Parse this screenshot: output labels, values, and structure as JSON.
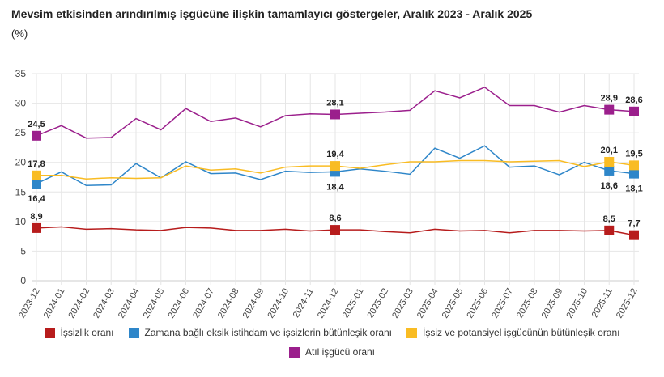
{
  "title": "Mevsim etkisinden arındırılmış işgücüne ilişkin tamamlayıcı göstergeler, Aralık 2023 - Aralık 2025",
  "unit": "(%)",
  "chart_data": {
    "type": "line",
    "title": "Mevsim etkisinden arındırılmış işgücüne ilişkin tamamlayıcı göstergeler, Aralık 2023 - Aralık 2025",
    "ylabel": "(%)",
    "ylim": [
      0,
      35
    ],
    "yticks": [
      0,
      5,
      10,
      15,
      20,
      25,
      30,
      35
    ],
    "grid": true,
    "legend_position": "bottom",
    "categories": [
      "2023-12",
      "2024-01",
      "2024-02",
      "2024-03",
      "2024-04",
      "2024-05",
      "2024-06",
      "2024-07",
      "2024-08",
      "2024-09",
      "2024-10",
      "2024-11",
      "2024-12",
      "2025-01",
      "2025-02",
      "2025-03",
      "2025-04",
      "2025-05",
      "2025-06",
      "2025-07",
      "2025-08",
      "2025-09",
      "2025-10",
      "2025-11",
      "2025-12"
    ],
    "labeled_indices": [
      0,
      12,
      23,
      24
    ],
    "series": [
      {
        "name": "İşsizlik oranı",
        "color": "#b71c1c",
        "values": [
          8.9,
          9.1,
          8.7,
          8.8,
          8.6,
          8.5,
          9.0,
          8.9,
          8.5,
          8.5,
          8.7,
          8.4,
          8.6,
          8.6,
          8.3,
          8.1,
          8.7,
          8.4,
          8.5,
          8.1,
          8.5,
          8.5,
          8.4,
          8.5,
          7.7
        ],
        "labels": [
          "8,9",
          "8,6",
          "8,5",
          "7,7"
        ]
      },
      {
        "name": "Zamana bağlı eksik istihdam ve işsizlerin bütünleşik oranı",
        "color": "#2e86c9",
        "values": [
          16.4,
          18.4,
          16.1,
          16.2,
          19.8,
          17.4,
          20.1,
          18.1,
          18.2,
          17.1,
          18.5,
          18.3,
          18.4,
          18.9,
          18.5,
          18.0,
          22.4,
          20.7,
          22.8,
          19.2,
          19.4,
          17.9,
          20.0,
          18.6,
          18.1
        ],
        "labels": [
          "16,4",
          "18,4",
          "18,6",
          "18,1"
        ]
      },
      {
        "name": "İşsiz ve potansiyel işgücünün bütünleşik oranı",
        "color": "#f9bc23",
        "values": [
          17.8,
          17.8,
          17.2,
          17.4,
          17.3,
          17.4,
          19.4,
          18.7,
          18.9,
          18.2,
          19.2,
          19.4,
          19.4,
          19.0,
          19.6,
          20.1,
          20.1,
          20.3,
          20.3,
          20.1,
          20.2,
          20.3,
          19.3,
          20.1,
          19.5
        ],
        "labels": [
          "17,8",
          "19,4",
          "20,1",
          "19,5"
        ]
      },
      {
        "name": "Atıl işgücü oranı",
        "color": "#9b1f8c",
        "values": [
          24.5,
          26.2,
          24.1,
          24.2,
          27.4,
          25.5,
          29.1,
          26.9,
          27.5,
          26.0,
          27.9,
          28.2,
          28.1,
          28.3,
          28.5,
          28.8,
          32.1,
          30.9,
          32.7,
          29.6,
          29.6,
          28.5,
          29.6,
          28.9,
          28.6
        ],
        "labels": [
          "24,5",
          "28,1",
          "28,9",
          "28,6"
        ]
      }
    ]
  }
}
